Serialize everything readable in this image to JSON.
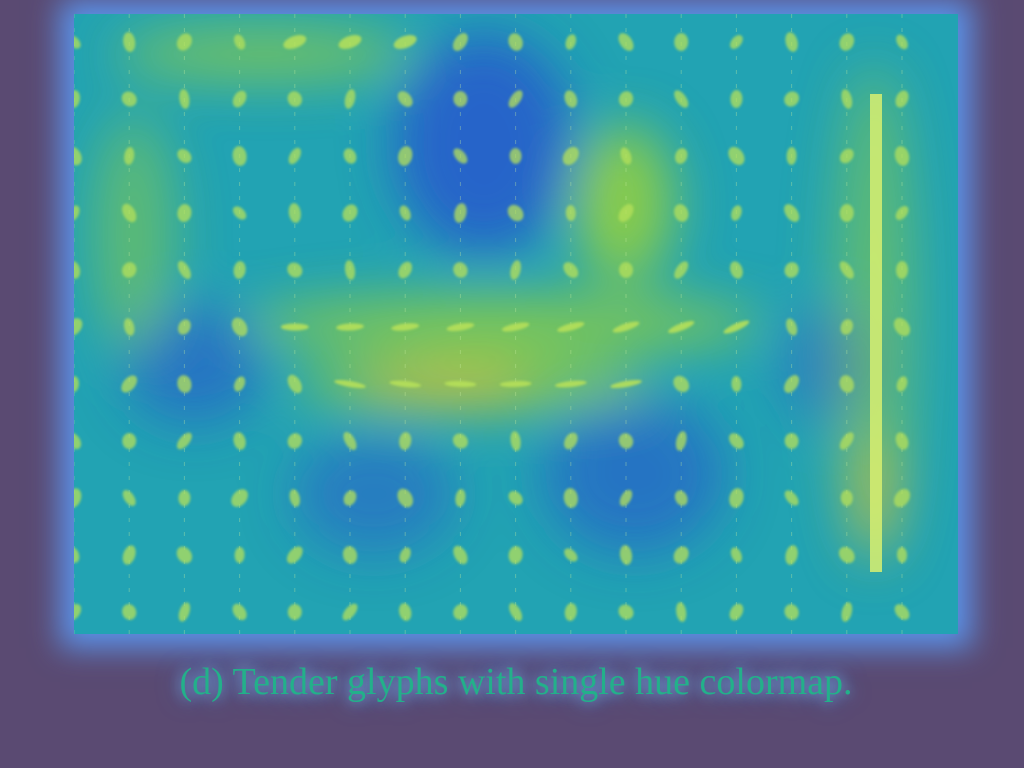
{
  "figure": {
    "caption": "(d) Tender glyphs with single hue colormap.",
    "grid_columns": 16,
    "grid_rows": 11,
    "colors": {
      "background": "#5a4a72",
      "glow": "#5aa0ff",
      "field_low": "#2a4fd0",
      "field_mid": "#1fa0b8",
      "field_high": "#9ad23a",
      "field_peak": "#f0c030",
      "glyph": "#b6e05a",
      "caption_text": "#23b08a"
    }
  }
}
